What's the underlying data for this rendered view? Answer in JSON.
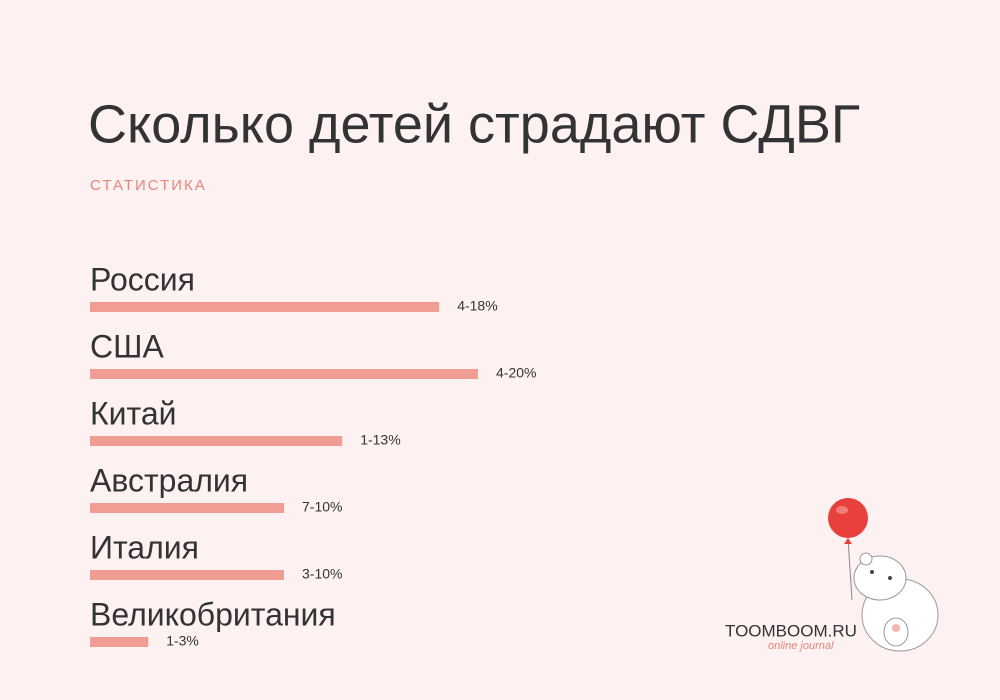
{
  "chart_data": {
    "type": "bar",
    "orientation": "horizontal",
    "title": "Сколько детей страдают СДВГ",
    "subtitle": "СТАТИСТИКА",
    "categories": [
      "Россия",
      "США",
      "Китай",
      "Австралия",
      "Италия",
      "Великобритания"
    ],
    "values": [
      18,
      20,
      13,
      10,
      10,
      3
    ],
    "value_labels": [
      "4-18%",
      "4-20%",
      "1-13%",
      "7-10%",
      "3-10%",
      "1-3%"
    ],
    "color": "#f09d94"
  },
  "brand": {
    "name": "TOOMBOOM.RU",
    "tagline": "online journal"
  }
}
